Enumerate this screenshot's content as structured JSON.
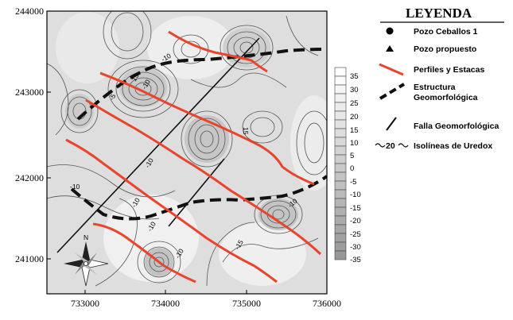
{
  "map": {
    "y_ticks": [
      "244000",
      "243000",
      "242000",
      "241000"
    ],
    "x_ticks": [
      "733000",
      "734000",
      "735000",
      "736000"
    ],
    "contour_labels": [
      "-10",
      "-10",
      "-5",
      "15",
      "15",
      "-10",
      "-10",
      "-10",
      "-10",
      "-10",
      "-15",
      "-10"
    ],
    "compass": {
      "north_label": "N"
    }
  },
  "scale": {
    "labels": [
      "35",
      "30",
      "25",
      "20",
      "15",
      "10",
      "5",
      "0",
      "-5",
      "-10",
      "-15",
      "-20",
      "-25",
      "-30",
      "-35"
    ]
  },
  "legend": {
    "title": "LEYENDA",
    "items": [
      {
        "symbol": "dot-icon",
        "lines": [
          "Pozo Ceballos 1"
        ]
      },
      {
        "symbol": "triangle-icon",
        "lines": [
          "Pozo propuesto"
        ]
      },
      {
        "symbol": "red-line-icon",
        "lines": [
          "Perfiles y Estacas"
        ]
      },
      {
        "symbol": "dashed-line-icon",
        "lines": [
          "Estructura",
          "Geomorfológica"
        ]
      },
      {
        "symbol": "fault-line-icon",
        "lines": [
          "Falla Geomorfológica"
        ]
      },
      {
        "symbol": "isoline-icon",
        "lines": [
          "Isolíneas de Uredox"
        ]
      }
    ],
    "isoline_sample_value": "20"
  },
  "colors": {
    "profile_red": "#e8452c",
    "structure_black": "#111111",
    "background_gray": "#e2e2e2",
    "contour": "#555555"
  }
}
